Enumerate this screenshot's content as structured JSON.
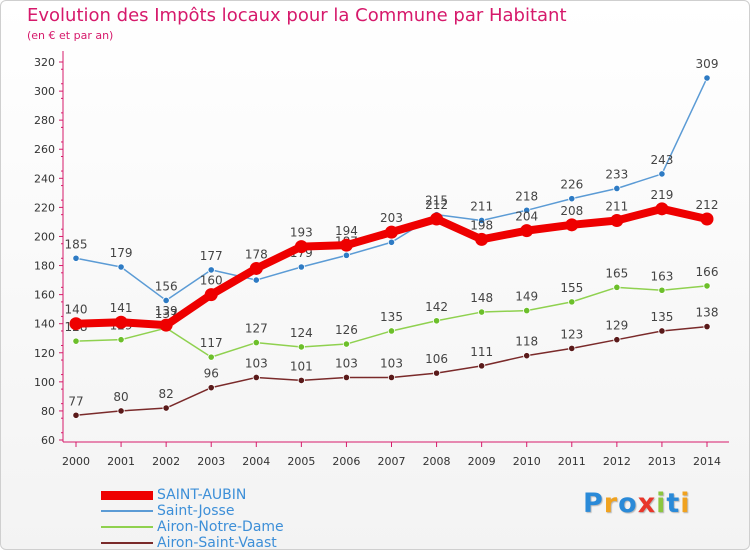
{
  "title": "Evolution des Impôts locaux pour la Commune par Habitant",
  "subtitle": "(en € et par an)",
  "logo": {
    "letters": [
      "P",
      "r",
      "o",
      "x",
      "i",
      "t",
      "i"
    ],
    "colors": [
      "#2a8ad8",
      "#f0a21f",
      "#2a8ad8",
      "#e8362a",
      "#8cc63f",
      "#2a8ad8",
      "#f0a21f"
    ]
  },
  "chart_data": {
    "type": "line",
    "title": "Evolution des Impôts locaux pour la Commune par Habitant",
    "subtitle": "(en € et par an)",
    "x": [
      "2000",
      "2001",
      "2002",
      "2003",
      "2004",
      "2005",
      "2006",
      "2007",
      "2008",
      "2009",
      "2010",
      "2011",
      "2012",
      "2013",
      "2014"
    ],
    "ylim": [
      60,
      320
    ],
    "yticks": [
      60,
      80,
      100,
      120,
      140,
      160,
      180,
      200,
      220,
      240,
      260,
      280,
      300,
      320
    ],
    "grid": false,
    "legend_position": "bottom-left",
    "series": [
      {
        "name": "Saint-Josse",
        "color": "#5b9bd5",
        "marker": "#2e7bc4",
        "values": [
          185,
          179,
          156,
          177,
          170,
          179,
          187,
          196,
          215,
          211,
          218,
          226,
          233,
          243,
          309
        ],
        "labels": [
          "185",
          "179",
          "156",
          "177",
          "",
          "179",
          "187",
          "",
          "215",
          "211",
          "218",
          "226",
          "233",
          "243",
          "309"
        ]
      },
      {
        "name": "Airon-Notre-Dame",
        "color": "#8fd14f",
        "marker": "#6cbf2a",
        "values": [
          128,
          129,
          137,
          117,
          127,
          124,
          126,
          135,
          142,
          148,
          149,
          155,
          165,
          163,
          166
        ],
        "labels": [
          "128",
          "129",
          "137",
          "117",
          "127",
          "124",
          "126",
          "135",
          "142",
          "148",
          "149",
          "155",
          "165",
          "163",
          "166"
        ]
      },
      {
        "name": "Airon-Saint-Vaast",
        "color": "#7a2a2a",
        "marker": "#5a1a1a",
        "values": [
          77,
          80,
          82,
          96,
          103,
          101,
          103,
          103,
          106,
          111,
          118,
          123,
          129,
          135,
          138
        ],
        "labels": [
          "77",
          "80",
          "82",
          "96",
          "103",
          "101",
          "103",
          "103",
          "106",
          "111",
          "118",
          "123",
          "129",
          "135",
          "138"
        ]
      },
      {
        "name": "SAINT-AUBIN",
        "color": "#ee0000",
        "marker": "#ee0000",
        "values": [
          140,
          141,
          139,
          160,
          178,
          193,
          194,
          203,
          212,
          198,
          204,
          208,
          211,
          219,
          212
        ],
        "labels": [
          "140",
          "141",
          "139",
          "160",
          "178",
          "193",
          "194",
          "203",
          "212",
          "198",
          "204",
          "208",
          "211",
          "219",
          "212"
        ]
      }
    ]
  },
  "legend": [
    {
      "label": "SAINT-AUBIN",
      "color": "#ee0000",
      "text_color": "#3d8fd8"
    },
    {
      "label": "Saint-Josse",
      "color": "#5b9bd5",
      "text_color": "#3d8fd8"
    },
    {
      "label": "Airon-Notre-Dame",
      "color": "#8fd14f",
      "text_color": "#3d8fd8"
    },
    {
      "label": "Airon-Saint-Vaast",
      "color": "#7a2a2a",
      "text_color": "#3d8fd8"
    }
  ]
}
